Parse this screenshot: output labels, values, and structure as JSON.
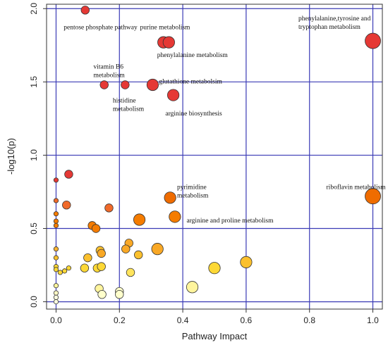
{
  "chart_data": {
    "type": "scatter",
    "xlabel": "Pathway Impact",
    "ylabel": "-log10(p)",
    "xlim": [
      -0.03,
      1.03
    ],
    "ylim": [
      -0.05,
      2.03
    ],
    "xticks": [
      "0.0",
      "0.2",
      "0.4",
      "0.6",
      "0.8",
      "1.0"
    ],
    "yticks": [
      "0.0",
      "0.5",
      "1.0",
      "1.5",
      "2.0"
    ],
    "grid": true,
    "color_scale": [
      "#ffffcc",
      "#ffd54f",
      "#f9a825",
      "#ef6c00",
      "#e53935",
      "#d50000"
    ],
    "points": [
      {
        "x": 0.092,
        "y": 1.99,
        "color": "#e53935",
        "size": "small"
      },
      {
        "x": 0.339,
        "y": 1.77,
        "color": "#e53935",
        "size": "medium"
      },
      {
        "x": 0.356,
        "y": 1.77,
        "color": "#e53935",
        "size": "medium"
      },
      {
        "x": 1.0,
        "y": 1.78,
        "color": "#e53935",
        "size": "large"
      },
      {
        "x": 0.152,
        "y": 1.48,
        "color": "#e53935",
        "size": "small"
      },
      {
        "x": 0.218,
        "y": 1.48,
        "color": "#e53935",
        "size": "small"
      },
      {
        "x": 0.305,
        "y": 1.48,
        "color": "#e53935",
        "size": "medium"
      },
      {
        "x": 0.37,
        "y": 1.41,
        "color": "#e53935",
        "size": "medium"
      },
      {
        "x": 0.04,
        "y": 0.87,
        "color": "#e53935",
        "size": "small"
      },
      {
        "x": 0.0,
        "y": 0.83,
        "color": "#e53935",
        "size": "tiny"
      },
      {
        "x": 0.0,
        "y": 0.69,
        "color": "#f06a2a",
        "size": "tiny"
      },
      {
        "x": 0.033,
        "y": 0.66,
        "color": "#f06a2a",
        "size": "small"
      },
      {
        "x": 0.167,
        "y": 0.64,
        "color": "#f06a2a",
        "size": "small"
      },
      {
        "x": 0.36,
        "y": 0.71,
        "color": "#ef6c00",
        "size": "medium"
      },
      {
        "x": 1.0,
        "y": 0.72,
        "color": "#ef6c00",
        "size": "large"
      },
      {
        "x": 0.0,
        "y": 0.6,
        "color": "#f57c00",
        "size": "tiny"
      },
      {
        "x": 0.0,
        "y": 0.55,
        "color": "#f57c00",
        "size": "tiny"
      },
      {
        "x": 0.0,
        "y": 0.52,
        "color": "#f57c00",
        "size": "tiny"
      },
      {
        "x": 0.114,
        "y": 0.52,
        "color": "#f57c00",
        "size": "small"
      },
      {
        "x": 0.126,
        "y": 0.5,
        "color": "#f57c00",
        "size": "small"
      },
      {
        "x": 0.263,
        "y": 0.56,
        "color": "#f57c00",
        "size": "medium"
      },
      {
        "x": 0.375,
        "y": 0.58,
        "color": "#f57c00",
        "size": "medium"
      },
      {
        "x": 0.0,
        "y": 0.36,
        "color": "#f9b233",
        "size": "tiny"
      },
      {
        "x": 0.0,
        "y": 0.3,
        "color": "#fbc02d",
        "size": "tiny"
      },
      {
        "x": 0.1,
        "y": 0.3,
        "color": "#fbc02d",
        "size": "small"
      },
      {
        "x": 0.139,
        "y": 0.35,
        "color": "#fbc02d",
        "size": "small"
      },
      {
        "x": 0.143,
        "y": 0.33,
        "color": "#f9a825",
        "size": "small"
      },
      {
        "x": 0.23,
        "y": 0.4,
        "color": "#f9a825",
        "size": "small"
      },
      {
        "x": 0.22,
        "y": 0.36,
        "color": "#f9a825",
        "size": "small"
      },
      {
        "x": 0.32,
        "y": 0.36,
        "color": "#f9a825",
        "size": "medium"
      },
      {
        "x": 0.26,
        "y": 0.32,
        "color": "#fbc02d",
        "size": "small"
      },
      {
        "x": 0.0,
        "y": 0.24,
        "color": "#fdd835",
        "size": "tiny"
      },
      {
        "x": 0.0,
        "y": 0.22,
        "color": "#fdd835",
        "size": "tiny"
      },
      {
        "x": 0.013,
        "y": 0.2,
        "color": "#fdd835",
        "size": "tiny"
      },
      {
        "x": 0.027,
        "y": 0.21,
        "color": "#fdd835",
        "size": "tiny"
      },
      {
        "x": 0.04,
        "y": 0.23,
        "color": "#fdd835",
        "size": "tiny"
      },
      {
        "x": 0.09,
        "y": 0.23,
        "color": "#fdd835",
        "size": "small"
      },
      {
        "x": 0.13,
        "y": 0.23,
        "color": "#fdd835",
        "size": "small"
      },
      {
        "x": 0.143,
        "y": 0.24,
        "color": "#fdd835",
        "size": "small"
      },
      {
        "x": 0.235,
        "y": 0.2,
        "color": "#ffe45c",
        "size": "small"
      },
      {
        "x": 0.5,
        "y": 0.23,
        "color": "#fdd835",
        "size": "medium"
      },
      {
        "x": 0.6,
        "y": 0.27,
        "color": "#fbc02d",
        "size": "medium"
      },
      {
        "x": 0.0,
        "y": 0.11,
        "color": "#fff59d",
        "size": "tiny"
      },
      {
        "x": 0.0,
        "y": 0.06,
        "color": "#fff9c4",
        "size": "tiny"
      },
      {
        "x": 0.0,
        "y": 0.03,
        "color": "#ffffe0",
        "size": "tiny"
      },
      {
        "x": 0.0,
        "y": 0.0,
        "color": "#ffffe0",
        "size": "tiny"
      },
      {
        "x": 0.136,
        "y": 0.09,
        "color": "#fff59d",
        "size": "small"
      },
      {
        "x": 0.145,
        "y": 0.05,
        "color": "#ffffcc",
        "size": "small"
      },
      {
        "x": 0.2,
        "y": 0.07,
        "color": "#ffffcc",
        "size": "small"
      },
      {
        "x": 0.2,
        "y": 0.05,
        "color": "#ffffcc",
        "size": "small"
      },
      {
        "x": 0.43,
        "y": 0.1,
        "color": "#fff59d",
        "size": "medium"
      }
    ],
    "annotations": [
      {
        "lines": [
          "pentose phosphate pathway"
        ],
        "x": 0.024,
        "y": 1.86
      },
      {
        "lines": [
          "purine metabolism"
        ],
        "x": 0.265,
        "y": 1.86
      },
      {
        "lines": [
          "phenylalanine metabolism"
        ],
        "x": 0.319,
        "y": 1.67
      },
      {
        "lines": [
          "phenylalanine,tyrosine and",
          "tryptophan metabolism"
        ],
        "x": 0.765,
        "y": 1.92
      },
      {
        "lines": [
          "vitamin B6",
          "metabolism"
        ],
        "x": 0.118,
        "y": 1.59
      },
      {
        "lines": [
          "glutathione metabolsim"
        ],
        "x": 0.325,
        "y": 1.49
      },
      {
        "lines": [
          "histidine",
          "metabolism"
        ],
        "x": 0.179,
        "y": 1.36
      },
      {
        "lines": [
          "arginine biosynthesis"
        ],
        "x": 0.345,
        "y": 1.27
      },
      {
        "lines": [
          "pyrimidine",
          "metabolism"
        ],
        "x": 0.382,
        "y": 0.77
      },
      {
        "lines": [
          "riboflavin metabolism"
        ],
        "x": 0.853,
        "y": 0.77
      },
      {
        "lines": [
          "arginine and proline metabolism"
        ],
        "x": 0.412,
        "y": 0.54
      }
    ]
  }
}
